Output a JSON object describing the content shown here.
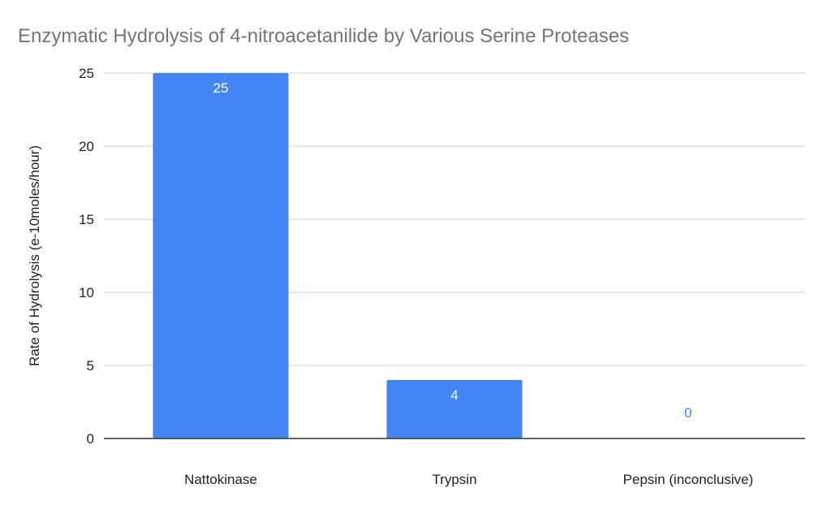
{
  "chart_data": {
    "type": "bar",
    "title": "Enzymatic Hydrolysis of 4-nitroacetanilide by Various Serine Proteases",
    "xlabel": "",
    "ylabel": "Rate of Hydrolysis (e-10moles/hour)",
    "categories": [
      "Nattokinase",
      "Trypsin",
      "Pepsin (inconclusive)"
    ],
    "values": [
      25,
      4,
      0
    ],
    "data_labels": [
      "25",
      "4",
      "0"
    ],
    "ylim": [
      0,
      25
    ],
    "yticks": [
      0,
      5,
      10,
      15,
      20,
      25
    ],
    "ytick_labels": [
      "0",
      "5",
      "10",
      "15",
      "20",
      "25"
    ],
    "grid": true,
    "legend": "none",
    "colors": {
      "bar": "#4285f4",
      "label_inside": "#ffffff",
      "label_outside": "#4285f4",
      "grid": "#cccccc",
      "axis": "#333333",
      "title": "#757575"
    }
  }
}
